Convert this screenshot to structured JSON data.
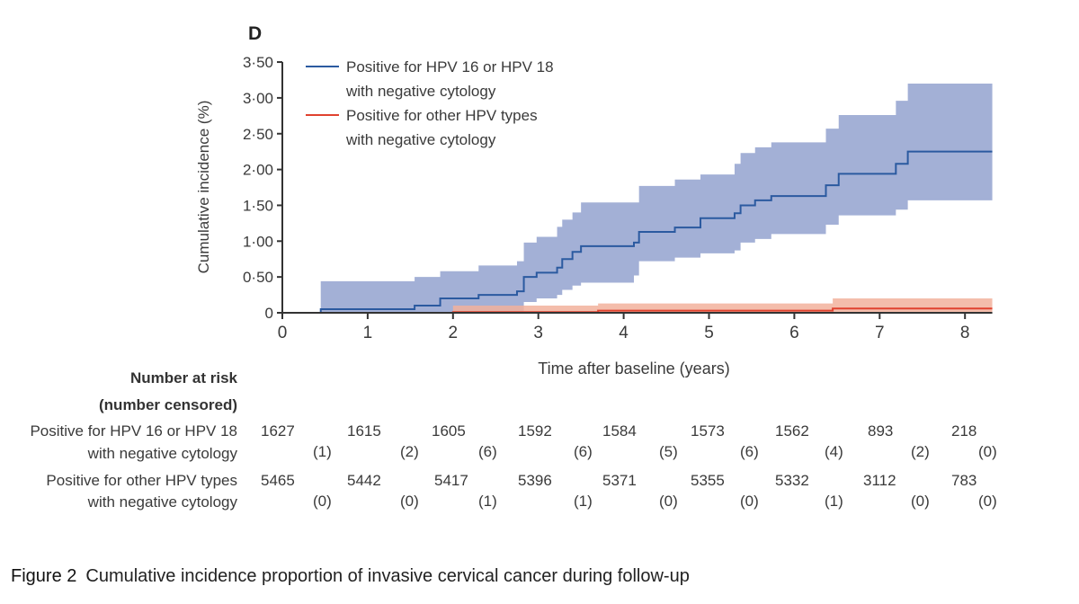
{
  "chart_data": {
    "type": "line",
    "panel_label": "D",
    "ylabel": "Cumulative incidence (%)",
    "xlabel": "Time after baseline (years)",
    "xlim": [
      0,
      8.32
    ],
    "ylim": [
      0,
      3.5
    ],
    "xticks": [
      0,
      1,
      2,
      3,
      4,
      5,
      6,
      7,
      8
    ],
    "yticks": [
      0,
      0.5,
      1,
      1.5,
      2,
      2.5,
      3,
      3.5
    ],
    "ytick_labels": [
      "0",
      "0·50",
      "1·00",
      "1·50",
      "2·00",
      "2·50",
      "3·00",
      "3·50"
    ],
    "grid": false,
    "legend_placement": "top-left",
    "colors": {
      "hpv1618_line": "#2b5aa0",
      "hpv1618_band": "#a3b0d6",
      "other_line": "#e0422f",
      "other_band": "#f2b29c",
      "axis": "#333333"
    },
    "series": [
      {
        "name": "Positive for HPV 16 or HPV 18 with negative cytology",
        "step": true,
        "x": [
          0,
          0.45,
          1.55,
          1.85,
          2.3,
          2.75,
          2.83,
          2.98,
          3.22,
          3.28,
          3.4,
          3.5,
          4.12,
          4.18,
          4.6,
          4.9,
          5.3,
          5.37,
          5.54,
          5.73,
          6.37,
          6.52,
          7.19,
          7.33,
          8.32
        ],
        "y": [
          0,
          0.05,
          0.1,
          0.2,
          0.25,
          0.3,
          0.5,
          0.56,
          0.63,
          0.75,
          0.85,
          0.93,
          0.98,
          1.13,
          1.19,
          1.32,
          1.39,
          1.5,
          1.57,
          1.63,
          1.78,
          1.94,
          2.08,
          2.25,
          2.25
        ],
        "lower": [
          0,
          0,
          0,
          0,
          0,
          0.02,
          0.15,
          0.2,
          0.25,
          0.32,
          0.38,
          0.42,
          0.52,
          0.72,
          0.77,
          0.83,
          0.87,
          0.98,
          1.03,
          1.1,
          1.23,
          1.36,
          1.44,
          1.57,
          1.57
        ],
        "upper": [
          0,
          0.44,
          0.5,
          0.58,
          0.66,
          0.72,
          0.98,
          1.06,
          1.2,
          1.3,
          1.4,
          1.54,
          1.54,
          1.77,
          1.86,
          1.93,
          2.08,
          2.23,
          2.31,
          2.38,
          2.57,
          2.76,
          2.96,
          3.2,
          3.2
        ]
      },
      {
        "name": "Positive for other HPV types with negative cytology",
        "step": true,
        "x": [
          0,
          2.0,
          3.7,
          6.45,
          8.32
        ],
        "y": [
          0,
          0.01,
          0.03,
          0.06,
          0.06
        ],
        "lower": [
          0,
          0,
          0,
          0.01,
          0.01
        ],
        "upper": [
          0,
          0.1,
          0.13,
          0.2,
          0.2
        ]
      }
    ],
    "legend": [
      {
        "line1": "Positive for HPV 16 or HPV 18",
        "line2": "with negative cytology"
      },
      {
        "line1": "Positive for other HPV types",
        "line2": "with negative cytology"
      }
    ]
  },
  "risk_table": {
    "title1": "Number at risk",
    "title2": "(number censored)",
    "rows": [
      {
        "label1": "Positive for HPV 16 or HPV 18",
        "label2": "with negative cytology",
        "at_risk": [
          "1627",
          "1615",
          "1605",
          "1592",
          "1584",
          "1573",
          "1562",
          "893",
          "218"
        ],
        "censored": [
          "(1)",
          "(2)",
          "(6)",
          "(6)",
          "(5)",
          "(6)",
          "(4)",
          "(2)",
          "(0)"
        ]
      },
      {
        "label1": "Positive for other HPV types",
        "label2": "with negative cytology",
        "at_risk": [
          "5465",
          "5442",
          "5417",
          "5396",
          "5371",
          "5355",
          "5332",
          "3112",
          "783"
        ],
        "censored": [
          "(0)",
          "(0)",
          "(1)",
          "(1)",
          "(0)",
          "(0)",
          "(1)",
          "(0)",
          "(0)"
        ]
      }
    ]
  },
  "caption": {
    "figure": "Figure 2",
    "text": "Cumulative incidence proportion of invasive cervical cancer during follow-up"
  }
}
